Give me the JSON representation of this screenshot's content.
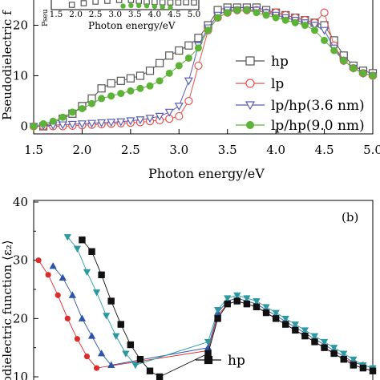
{
  "chart_data": [
    {
      "panel": "a",
      "type": "line",
      "ylabel": "Pseudodielectric f",
      "xlabel": "Photon energy/eV",
      "xlim": [
        1.5,
        5.0
      ],
      "ylim": [
        -1.5,
        25
      ],
      "xticks": [
        "1.5",
        "2.0",
        "2.5",
        "3.0",
        "3.5",
        "4.0",
        "4.5",
        "5.0"
      ],
      "yticks": [
        "0",
        "10",
        "20"
      ],
      "inset": {
        "xticks": [
          "1.5",
          "2.0",
          "2.5",
          "3.0",
          "3.5",
          "4.0",
          "4.5",
          "5.0"
        ],
        "xlabel": "Photon energy/eV",
        "ylabel_fragment": "Pseu",
        "series": [
          {
            "name": "hp",
            "x": [
              1.9,
              2.2,
              2.5,
              2.8,
              3.1,
              3.4,
              3.6,
              3.8,
              4.0,
              4.2,
              4.4,
              4.6,
              4.8,
              5.0
            ],
            "y": [
              23.0,
              24.0,
              25.0,
              25.5,
              26.0,
              26.0,
              25.5,
              25.0,
              24.8,
              24.6,
              24.5,
              24.5,
              24.6,
              24.5
            ]
          },
          {
            "name": "lp/hp(9.0 nm)",
            "x": [
              3.2,
              3.4,
              3.6,
              3.8,
              4.0,
              4.2,
              4.4
            ],
            "y": [
              22.2,
              22.6,
              22.6,
              22.4,
              22.0,
              21.6,
              21.3
            ]
          }
        ]
      },
      "series": [
        {
          "name": "hp",
          "color": "#555555",
          "marker": "square",
          "x": [
            1.6,
            1.8,
            1.9,
            2.0,
            2.1,
            2.2,
            2.3,
            2.4,
            2.5,
            2.6,
            2.7,
            2.8,
            2.9,
            3.0,
            3.1,
            3.2,
            3.3,
            3.4,
            3.5,
            3.6,
            3.7,
            3.8,
            3.9,
            4.0,
            4.1,
            4.2,
            4.3,
            4.4,
            4.5,
            4.6,
            4.7,
            4.8,
            4.9,
            5.0
          ],
          "y": [
            0.0,
            1.5,
            2.5,
            4.0,
            5.5,
            7.5,
            8.5,
            9.0,
            9.5,
            10.0,
            11.0,
            12.5,
            14.0,
            15.0,
            16.0,
            17.5,
            20.0,
            23.0,
            23.5,
            23.5,
            23.5,
            23.5,
            23.0,
            22.5,
            22.0,
            21.5,
            21.0,
            20.5,
            20.0,
            17.0,
            14.0,
            12.0,
            11.0,
            10.5
          ]
        },
        {
          "name": "lp",
          "color": "#e8504a",
          "marker": "circle",
          "x": [
            1.5,
            1.6,
            1.7,
            1.8,
            1.9,
            2.0,
            2.1,
            2.2,
            2.3,
            2.4,
            2.5,
            2.6,
            2.7,
            2.8,
            2.9,
            3.0,
            3.1,
            3.2,
            3.3,
            3.4,
            3.5,
            3.6,
            3.7,
            3.8,
            3.9,
            4.0,
            4.1,
            4.2,
            4.3,
            4.4,
            4.5,
            4.6,
            4.7,
            4.8,
            4.9,
            5.0
          ],
          "y": [
            0.0,
            0.0,
            0.0,
            0.0,
            0.1,
            0.2,
            0.3,
            0.4,
            0.5,
            0.6,
            0.7,
            0.8,
            1.0,
            1.2,
            1.5,
            2.0,
            5.0,
            12.0,
            19.0,
            21.5,
            22.5,
            23.0,
            23.0,
            23.0,
            22.5,
            22.5,
            22.0,
            21.5,
            21.0,
            20.5,
            22.5,
            16.0,
            13.0,
            11.5,
            10.5,
            10.0
          ]
        },
        {
          "name": "lp/hp(3.6 nm)",
          "color": "#5a5fb5",
          "marker": "triangle-down",
          "x": [
            1.5,
            1.6,
            1.7,
            1.8,
            1.9,
            2.0,
            2.1,
            2.2,
            2.3,
            2.4,
            2.5,
            2.6,
            2.7,
            2.8,
            2.9,
            3.0,
            3.1,
            3.2,
            3.3,
            3.4,
            3.5,
            3.6,
            3.7,
            3.8,
            3.9,
            4.0,
            4.1,
            4.2,
            4.3,
            4.4,
            4.5,
            4.6,
            4.7,
            4.8,
            4.9,
            5.0
          ],
          "y": [
            0.0,
            0.1,
            0.2,
            0.3,
            0.4,
            0.5,
            0.6,
            0.7,
            0.8,
            0.9,
            1.1,
            1.3,
            1.6,
            2.0,
            2.8,
            4.0,
            9.0,
            16.0,
            19.5,
            22.0,
            23.0,
            23.0,
            23.0,
            23.0,
            22.5,
            22.0,
            21.5,
            21.0,
            20.5,
            20.0,
            19.0,
            15.5,
            13.0,
            11.5,
            10.5,
            10.0
          ]
        },
        {
          "name": "lp/hp(9.0 nm)",
          "color": "#5cb338",
          "marker": "circle-filled",
          "x": [
            1.5,
            1.6,
            1.7,
            1.8,
            1.9,
            2.0,
            2.1,
            2.2,
            2.3,
            2.4,
            2.5,
            2.6,
            2.7,
            2.8,
            2.9,
            3.0,
            3.1,
            3.2,
            3.3,
            3.4,
            3.5,
            3.6,
            3.7,
            3.8,
            3.9,
            4.0,
            4.1,
            4.2,
            4.3,
            4.4,
            4.5,
            4.6,
            4.7,
            4.8,
            4.9,
            5.0
          ],
          "y": [
            0.0,
            0.5,
            1.0,
            1.8,
            2.8,
            3.5,
            4.5,
            5.5,
            6.0,
            6.5,
            7.0,
            7.5,
            8.0,
            9.0,
            10.5,
            12.0,
            13.5,
            15.5,
            19.0,
            21.5,
            22.5,
            23.0,
            23.0,
            22.5,
            22.0,
            21.5,
            21.0,
            20.5,
            20.0,
            19.0,
            17.0,
            15.0,
            13.0,
            11.5,
            10.5,
            10.0
          ]
        }
      ]
    },
    {
      "panel": "b",
      "type": "line",
      "panel_label": "(b)",
      "ylabel": "odielectric function ⟨ε₂⟩",
      "ylim": [
        10,
        40
      ],
      "yticks": [
        "10",
        "20",
        "30",
        "40"
      ],
      "x_reference_from_panel_a": [
        1.5,
        5.0
      ],
      "legend_visible": [
        "hp"
      ],
      "series": [
        {
          "name": "hp",
          "color": "#111111",
          "marker": "square-filled",
          "x": [
            2.0,
            2.1,
            2.2,
            2.3,
            2.4,
            2.5,
            2.6,
            2.7,
            2.8,
            3.3,
            3.4,
            3.5,
            3.6,
            3.7,
            3.8,
            3.9,
            4.0,
            4.1,
            4.2,
            4.3,
            4.4,
            4.5,
            4.6,
            4.7,
            4.8,
            4.9,
            5.0
          ],
          "y": [
            33.5,
            31.5,
            27.5,
            23.0,
            19.0,
            15.5,
            13.0,
            11.0,
            10.0,
            14.0,
            20.0,
            22.5,
            23.0,
            22.5,
            22.0,
            21.0,
            20.0,
            19.0,
            18.0,
            17.0,
            16.0,
            15.0,
            14.0,
            13.0,
            12.0,
            11.5,
            11.0
          ]
        },
        {
          "name": "",
          "color": "#2b9aa0",
          "marker": "triangle-down-filled",
          "x": [
            1.85,
            1.95,
            2.05,
            2.15,
            2.25,
            2.35,
            2.45,
            2.55,
            3.3,
            3.4,
            3.5,
            3.6,
            3.7,
            3.8,
            3.9,
            4.0,
            4.1,
            4.2,
            4.3,
            4.4,
            4.5,
            4.6,
            4.7,
            4.8,
            4.9,
            5.0
          ],
          "y": [
            34.0,
            32.0,
            28.0,
            24.5,
            20.5,
            17.0,
            14.0,
            12.0,
            16.0,
            21.5,
            23.5,
            24.0,
            23.5,
            23.0,
            22.0,
            21.0,
            20.0,
            19.0,
            18.0,
            17.0,
            16.0,
            15.0,
            14.0,
            13.0,
            12.0,
            11.5
          ]
        },
        {
          "name": "",
          "color": "#2c54a8",
          "marker": "triangle-up-filled",
          "x": [
            1.7,
            1.8,
            1.9,
            2.0,
            2.1,
            2.2,
            2.3,
            3.3,
            3.4,
            3.5,
            3.6,
            3.7,
            3.8,
            3.9,
            4.0,
            4.1,
            4.2,
            4.3,
            4.4,
            4.5,
            4.6,
            4.7,
            4.8,
            4.9,
            5.0
          ],
          "y": [
            29.0,
            27.0,
            24.0,
            20.0,
            17.0,
            14.0,
            12.0,
            15.0,
            21.0,
            23.0,
            23.5,
            23.0,
            22.5,
            21.5,
            20.5,
            19.5,
            18.5,
            17.5,
            16.5,
            15.5,
            14.5,
            13.5,
            12.5,
            12.0,
            11.5
          ]
        },
        {
          "name": "",
          "color": "#d92c2c",
          "marker": "circle-filled",
          "x": [
            1.55,
            1.65,
            1.75,
            1.85,
            1.95,
            2.05,
            2.15,
            3.3,
            3.4,
            3.5,
            3.6,
            3.7,
            3.8,
            3.9,
            4.0,
            4.1,
            4.2,
            4.3,
            4.4,
            4.5,
            4.6,
            4.7,
            4.8,
            4.9,
            5.0
          ],
          "y": [
            30.0,
            27.5,
            24.0,
            20.0,
            16.5,
            13.5,
            11.5,
            14.5,
            20.5,
            22.5,
            23.0,
            22.5,
            22.0,
            21.0,
            20.0,
            19.0,
            18.0,
            17.0,
            16.0,
            15.0,
            14.0,
            13.0,
            12.5,
            12.0,
            11.5
          ]
        }
      ]
    }
  ],
  "legend_a": [
    "hp",
    "lp",
    "lp/hp(3.6 nm)",
    "lp/hp(9.0 nm)"
  ],
  "legend_b": [
    "hp"
  ]
}
